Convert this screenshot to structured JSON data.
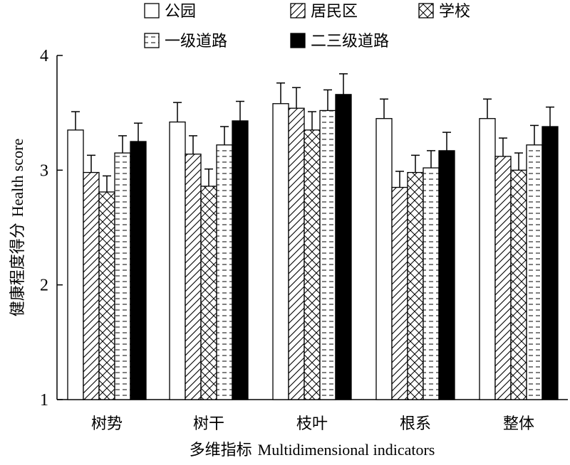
{
  "chart_data": {
    "type": "bar",
    "categories": [
      "树势",
      "树干",
      "枝叶",
      "根系",
      "整体"
    ],
    "series": [
      {
        "name": "公园",
        "values": [
          3.35,
          3.42,
          3.58,
          3.45,
          3.45
        ],
        "errors": [
          0.16,
          0.17,
          0.18,
          0.17,
          0.17
        ],
        "pattern": "white"
      },
      {
        "name": "居民区",
        "values": [
          2.98,
          3.14,
          3.54,
          2.85,
          3.12
        ],
        "errors": [
          0.15,
          0.16,
          0.18,
          0.14,
          0.16
        ],
        "pattern": "diagonal"
      },
      {
        "name": "学校",
        "values": [
          2.81,
          2.86,
          3.35,
          2.98,
          3.0
        ],
        "errors": [
          0.14,
          0.15,
          0.16,
          0.15,
          0.15
        ],
        "pattern": "crosshatch"
      },
      {
        "name": "一级道路",
        "values": [
          3.15,
          3.22,
          3.52,
          3.02,
          3.22
        ],
        "errors": [
          0.15,
          0.16,
          0.18,
          0.15,
          0.17
        ],
        "pattern": "dashes"
      },
      {
        "name": "二三级道路",
        "values": [
          3.25,
          3.43,
          3.66,
          3.17,
          3.38
        ],
        "errors": [
          0.16,
          0.17,
          0.18,
          0.16,
          0.17
        ],
        "pattern": "black"
      }
    ],
    "ylim": [
      1,
      4
    ],
    "yticks": [
      "1",
      "2",
      "3",
      "4"
    ],
    "ylabel_cn": "健康程度得分",
    "ylabel_en": "Health score",
    "xlabel_cn": "多维指标",
    "xlabel_en": "Multidimensional indicators",
    "legend_position": "top",
    "grid": false
  }
}
